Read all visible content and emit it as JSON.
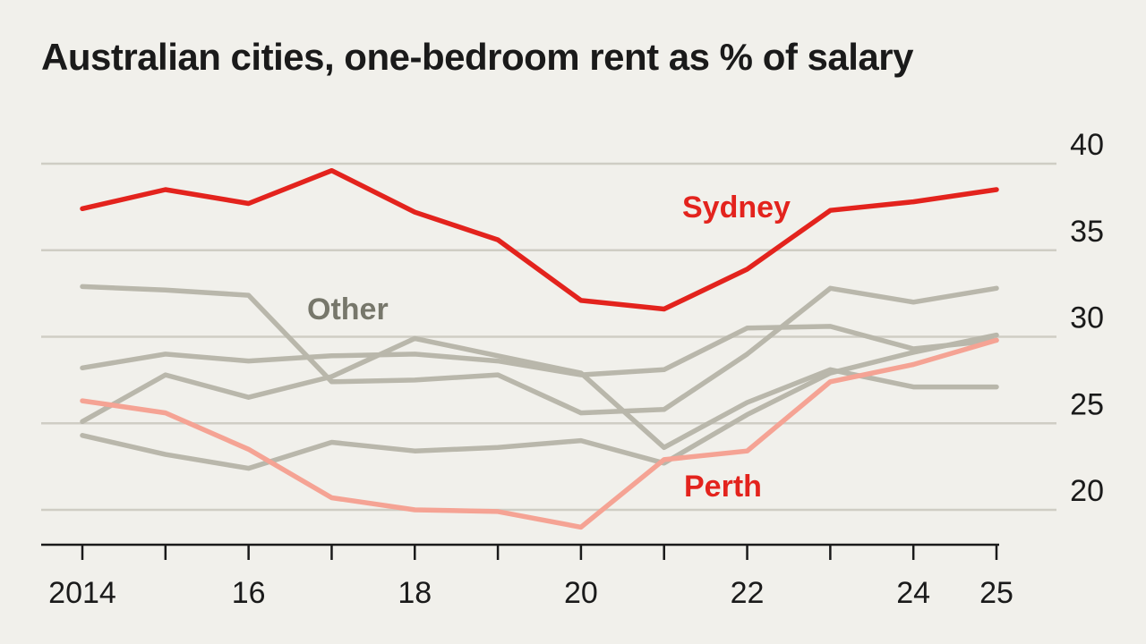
{
  "chart_data": {
    "type": "line",
    "title": "Australian cities, one-bedroom rent as % of salary",
    "x": [
      2014,
      2015,
      2016,
      2017,
      2018,
      2019,
      2020,
      2021,
      2022,
      2023,
      2024,
      2025
    ],
    "x_tick_labels": [
      "2014",
      "16",
      "18",
      "20",
      "22",
      "24",
      "25"
    ],
    "x_tick_values": [
      2014,
      2016,
      2018,
      2020,
      2022,
      2024,
      2025
    ],
    "ylim": [
      18,
      40
    ],
    "y_ticks": [
      20,
      25,
      30,
      35,
      40
    ],
    "y_axis_side": "right",
    "grid": true,
    "colors": {
      "highlight": "#e3231d",
      "perth": "#f5a394",
      "other": "#b9b7ab",
      "background": "#f1f0eb"
    },
    "labels": {
      "sydney": "Sydney",
      "perth": "Perth",
      "other": "Other"
    },
    "series": [
      {
        "name": "Sydney",
        "color": "#e3231d",
        "values": [
          37.4,
          38.5,
          37.7,
          39.6,
          37.2,
          35.6,
          32.1,
          31.6,
          33.9,
          37.3,
          37.8,
          38.5
        ]
      },
      {
        "name": "Perth",
        "color": "#f5a394",
        "values": [
          26.3,
          25.6,
          23.5,
          20.7,
          20.0,
          19.9,
          19.0,
          22.9,
          23.4,
          27.4,
          28.4,
          29.8
        ]
      },
      {
        "color": "#b9b7ab",
        "values": [
          32.9,
          32.7,
          32.4,
          27.4,
          27.5,
          27.8,
          25.6,
          25.8,
          29.0,
          32.8,
          32.0,
          32.8
        ]
      },
      {
        "color": "#b9b7ab",
        "values": [
          28.2,
          29.0,
          28.6,
          28.9,
          29.0,
          28.6,
          27.8,
          28.1,
          30.5,
          30.6,
          29.3,
          29.8
        ]
      },
      {
        "color": "#b9b7ab",
        "values": [
          25.1,
          27.8,
          26.5,
          27.7,
          29.9,
          28.9,
          27.9,
          23.6,
          26.2,
          28.1,
          27.1,
          27.1
        ]
      },
      {
        "color": "#b9b7ab",
        "values": [
          24.3,
          23.2,
          22.4,
          23.9,
          23.4,
          23.6,
          24.0,
          22.7,
          25.5,
          27.9,
          29.1,
          30.1
        ]
      }
    ]
  }
}
